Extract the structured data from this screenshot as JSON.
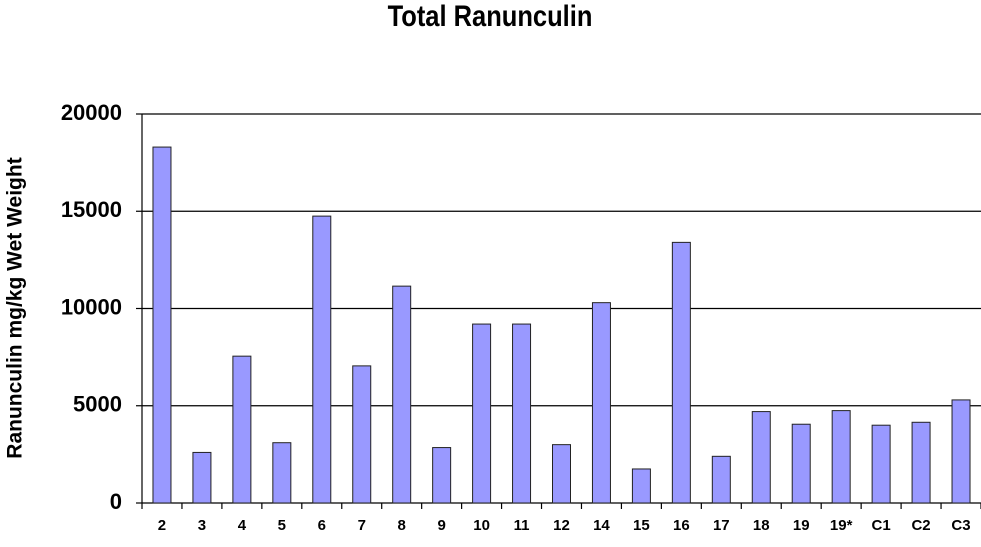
{
  "chart_data": {
    "type": "bar",
    "title": "Total Ranunculin",
    "y_label": "Ranunculin mg/kg Wet Weight",
    "categories": [
      "2",
      "3",
      "4",
      "5",
      "6",
      "7",
      "8",
      "9",
      "10",
      "11",
      "12",
      "14",
      "15",
      "16",
      "17",
      "18",
      "19",
      "19*",
      "C1",
      "C2",
      "C3"
    ],
    "values": [
      18300,
      2600,
      7550,
      3100,
      14750,
      7050,
      11150,
      2850,
      9200,
      9200,
      3000,
      10300,
      1750,
      13400,
      2400,
      4700,
      4050,
      4750,
      4000,
      4150,
      5300
    ],
    "color": "#9999ff",
    "ylim": [
      0,
      20000
    ],
    "yticks": [
      0,
      5000,
      10000,
      15000,
      20000
    ],
    "grid": true
  }
}
